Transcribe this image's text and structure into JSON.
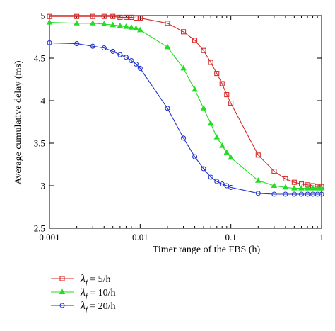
{
  "chart_data": {
    "type": "line",
    "xscale": "log",
    "xlim": [
      0.001,
      1
    ],
    "ylim": [
      2.5,
      5
    ],
    "xticks": [
      0.001,
      0.01,
      0.1,
      1
    ],
    "xtick_labels": [
      "0.001",
      "0.01",
      "0.1",
      "1"
    ],
    "yticks": [
      2.5,
      3,
      3.5,
      4,
      4.5,
      5
    ],
    "ytick_labels": [
      "2.5",
      "3",
      "3.5",
      "4",
      "4.5",
      "5"
    ],
    "xlabel": "Timer range of the FBS (h)",
    "ylabel": "Average cumulative delay (ms)",
    "grid": false,
    "legend_position": "below-left",
    "series": [
      {
        "name": "λ_f = 5/h",
        "legend_symbol": "λ",
        "legend_subscript": "f",
        "legend_value": " = 5/h",
        "color": "#d62a2a",
        "marker": "square",
        "x": [
          0.001,
          0.002,
          0.003,
          0.004,
          0.005,
          0.006,
          0.007,
          0.008,
          0.009,
          0.01,
          0.02,
          0.03,
          0.04,
          0.05,
          0.06,
          0.07,
          0.08,
          0.09,
          0.1,
          0.2,
          0.3,
          0.4,
          0.5,
          0.6,
          0.7,
          0.8,
          0.9,
          1
        ],
        "y": [
          4.99,
          4.99,
          4.99,
          4.99,
          4.99,
          4.98,
          4.98,
          4.98,
          4.97,
          4.97,
          4.91,
          4.81,
          4.71,
          4.59,
          4.45,
          4.32,
          4.2,
          4.07,
          3.97,
          3.36,
          3.17,
          3.08,
          3.04,
          3.02,
          3.01,
          3.0,
          2.99,
          2.99
        ]
      },
      {
        "name": "λ_f = 10/h",
        "legend_symbol": "λ",
        "legend_subscript": "f",
        "legend_value": " = 10/h",
        "color": "#22dd22",
        "marker": "triangle",
        "x": [
          0.001,
          0.002,
          0.003,
          0.004,
          0.005,
          0.006,
          0.007,
          0.008,
          0.009,
          0.01,
          0.02,
          0.03,
          0.04,
          0.05,
          0.06,
          0.07,
          0.08,
          0.09,
          0.1,
          0.2,
          0.3,
          0.4,
          0.5,
          0.6,
          0.7,
          0.8,
          0.9,
          1
        ],
        "y": [
          4.92,
          4.91,
          4.91,
          4.9,
          4.89,
          4.88,
          4.87,
          4.86,
          4.85,
          4.83,
          4.63,
          4.38,
          4.13,
          3.91,
          3.73,
          3.57,
          3.47,
          3.39,
          3.33,
          3.06,
          3.0,
          2.98,
          2.97,
          2.97,
          2.97,
          2.97,
          2.97,
          2.97
        ]
      },
      {
        "name": "λ_f = 20/h",
        "legend_symbol": "λ",
        "legend_subscript": "f",
        "legend_value": " = 20/h",
        "color": "#2233cc",
        "marker": "circle",
        "x": [
          0.001,
          0.002,
          0.003,
          0.004,
          0.005,
          0.006,
          0.007,
          0.008,
          0.009,
          0.01,
          0.02,
          0.03,
          0.04,
          0.05,
          0.06,
          0.07,
          0.08,
          0.09,
          0.1,
          0.2,
          0.3,
          0.4,
          0.5,
          0.6,
          0.7,
          0.8,
          0.9,
          1
        ],
        "y": [
          4.68,
          4.67,
          4.64,
          4.62,
          4.58,
          4.54,
          4.51,
          4.47,
          4.43,
          4.38,
          3.91,
          3.56,
          3.34,
          3.2,
          3.1,
          3.05,
          3.02,
          3.0,
          2.98,
          2.91,
          2.9,
          2.9,
          2.9,
          2.9,
          2.9,
          2.9,
          2.9,
          2.9
        ]
      }
    ]
  }
}
